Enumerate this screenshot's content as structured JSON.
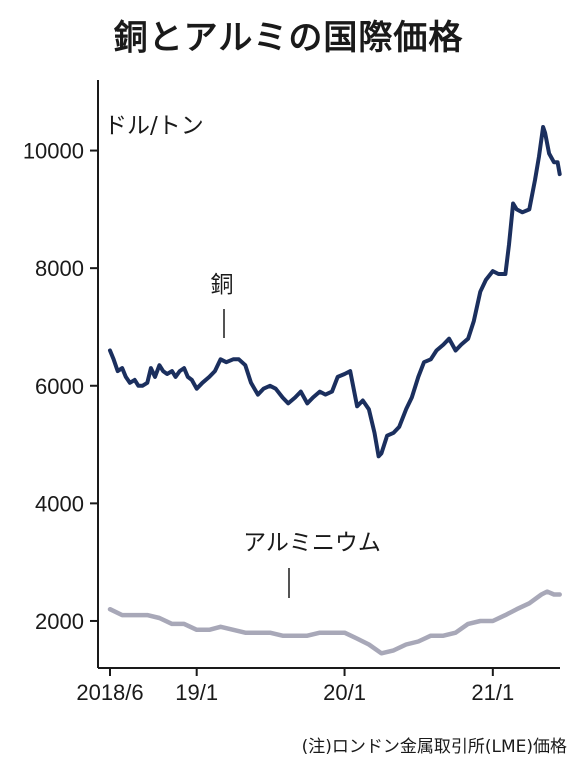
{
  "chart_data": {
    "type": "line",
    "title": "銅とアルミの国際価格",
    "unit_label": "ドル/トン",
    "yticks": [
      2000,
      4000,
      6000,
      8000,
      10000
    ],
    "ylim": [
      1200,
      11200
    ],
    "xlim": [
      "2018-06",
      "2021-06"
    ],
    "xticks": [
      {
        "date": "2018-06",
        "label": "2018/6"
      },
      {
        "date": "2019-01",
        "label": "19/1"
      },
      {
        "date": "2020-01",
        "label": "20/1"
      },
      {
        "date": "2021-01",
        "label": "21/1"
      }
    ],
    "grid": false,
    "legend": "inline labels",
    "series": [
      {
        "name": "銅",
        "color": "#1b2f5e",
        "points": [
          [
            "2018-06-01",
            6600
          ],
          [
            "2018-06-10",
            6450
          ],
          [
            "2018-06-20",
            6250
          ],
          [
            "2018-07-01",
            6300
          ],
          [
            "2018-07-10",
            6150
          ],
          [
            "2018-07-20",
            6050
          ],
          [
            "2018-08-01",
            6100
          ],
          [
            "2018-08-10",
            6000
          ],
          [
            "2018-08-20",
            6000
          ],
          [
            "2018-09-01",
            6050
          ],
          [
            "2018-09-10",
            6300
          ],
          [
            "2018-09-20",
            6150
          ],
          [
            "2018-10-01",
            6350
          ],
          [
            "2018-10-10",
            6250
          ],
          [
            "2018-10-20",
            6200
          ],
          [
            "2018-11-01",
            6250
          ],
          [
            "2018-11-10",
            6150
          ],
          [
            "2018-11-20",
            6250
          ],
          [
            "2018-12-01",
            6300
          ],
          [
            "2018-12-10",
            6150
          ],
          [
            "2018-12-20",
            6100
          ],
          [
            "2019-01-01",
            5950
          ],
          [
            "2019-01-15",
            6050
          ],
          [
            "2019-02-01",
            6150
          ],
          [
            "2019-02-15",
            6250
          ],
          [
            "2019-03-01",
            6450
          ],
          [
            "2019-03-15",
            6400
          ],
          [
            "2019-04-01",
            6450
          ],
          [
            "2019-04-15",
            6450
          ],
          [
            "2019-05-01",
            6350
          ],
          [
            "2019-05-15",
            6050
          ],
          [
            "2019-06-01",
            5850
          ],
          [
            "2019-06-15",
            5950
          ],
          [
            "2019-07-01",
            6000
          ],
          [
            "2019-07-15",
            5950
          ],
          [
            "2019-08-01",
            5800
          ],
          [
            "2019-08-15",
            5700
          ],
          [
            "2019-09-01",
            5800
          ],
          [
            "2019-09-15",
            5900
          ],
          [
            "2019-10-01",
            5700
          ],
          [
            "2019-10-15",
            5800
          ],
          [
            "2019-11-01",
            5900
          ],
          [
            "2019-11-15",
            5850
          ],
          [
            "2019-12-01",
            5900
          ],
          [
            "2019-12-15",
            6150
          ],
          [
            "2020-01-01",
            6200
          ],
          [
            "2020-01-15",
            6250
          ],
          [
            "2020-02-01",
            5650
          ],
          [
            "2020-02-15",
            5750
          ],
          [
            "2020-03-01",
            5600
          ],
          [
            "2020-03-15",
            5200
          ],
          [
            "2020-03-25",
            4800
          ],
          [
            "2020-04-01",
            4850
          ],
          [
            "2020-04-15",
            5150
          ],
          [
            "2020-05-01",
            5200
          ],
          [
            "2020-05-15",
            5300
          ],
          [
            "2020-06-01",
            5600
          ],
          [
            "2020-06-15",
            5800
          ],
          [
            "2020-07-01",
            6150
          ],
          [
            "2020-07-15",
            6400
          ],
          [
            "2020-08-01",
            6450
          ],
          [
            "2020-08-15",
            6600
          ],
          [
            "2020-09-01",
            6700
          ],
          [
            "2020-09-15",
            6800
          ],
          [
            "2020-10-01",
            6600
          ],
          [
            "2020-10-15",
            6700
          ],
          [
            "2020-11-01",
            6800
          ],
          [
            "2020-11-15",
            7100
          ],
          [
            "2020-12-01",
            7600
          ],
          [
            "2020-12-15",
            7800
          ],
          [
            "2021-01-01",
            7950
          ],
          [
            "2021-01-15",
            7900
          ],
          [
            "2021-02-01",
            7900
          ],
          [
            "2021-02-10",
            8400
          ],
          [
            "2021-02-20",
            9100
          ],
          [
            "2021-03-01",
            9000
          ],
          [
            "2021-03-15",
            8950
          ],
          [
            "2021-04-01",
            9000
          ],
          [
            "2021-04-15",
            9500
          ],
          [
            "2021-04-25",
            9900
          ],
          [
            "2021-05-05",
            10400
          ],
          [
            "2021-05-10",
            10300
          ],
          [
            "2021-05-20",
            9950
          ],
          [
            "2021-06-01",
            9800
          ],
          [
            "2021-06-10",
            9800
          ],
          [
            "2021-06-15",
            9600
          ]
        ]
      },
      {
        "name": "アルミニウム",
        "color": "#a8a8b8",
        "points": [
          [
            "2018-06-01",
            2200
          ],
          [
            "2018-07-01",
            2100
          ],
          [
            "2018-08-01",
            2100
          ],
          [
            "2018-09-01",
            2100
          ],
          [
            "2018-10-01",
            2050
          ],
          [
            "2018-11-01",
            1950
          ],
          [
            "2018-12-01",
            1950
          ],
          [
            "2019-01-01",
            1850
          ],
          [
            "2019-02-01",
            1850
          ],
          [
            "2019-03-01",
            1900
          ],
          [
            "2019-04-01",
            1850
          ],
          [
            "2019-05-01",
            1800
          ],
          [
            "2019-06-01",
            1800
          ],
          [
            "2019-07-01",
            1800
          ],
          [
            "2019-08-01",
            1750
          ],
          [
            "2019-09-01",
            1750
          ],
          [
            "2019-10-01",
            1750
          ],
          [
            "2019-11-01",
            1800
          ],
          [
            "2019-12-01",
            1800
          ],
          [
            "2020-01-01",
            1800
          ],
          [
            "2020-02-01",
            1700
          ],
          [
            "2020-03-01",
            1600
          ],
          [
            "2020-04-01",
            1450
          ],
          [
            "2020-05-01",
            1500
          ],
          [
            "2020-06-01",
            1600
          ],
          [
            "2020-07-01",
            1650
          ],
          [
            "2020-08-01",
            1750
          ],
          [
            "2020-09-01",
            1750
          ],
          [
            "2020-10-01",
            1800
          ],
          [
            "2020-11-01",
            1950
          ],
          [
            "2020-12-01",
            2000
          ],
          [
            "2021-01-01",
            2000
          ],
          [
            "2021-02-01",
            2100
          ],
          [
            "2021-03-01",
            2200
          ],
          [
            "2021-04-01",
            2300
          ],
          [
            "2021-05-01",
            2450
          ],
          [
            "2021-05-15",
            2500
          ],
          [
            "2021-06-01",
            2450
          ],
          [
            "2021-06-15",
            2450
          ]
        ]
      }
    ]
  },
  "source_note": "(注)ロンドン金属取引所(LME)価格"
}
